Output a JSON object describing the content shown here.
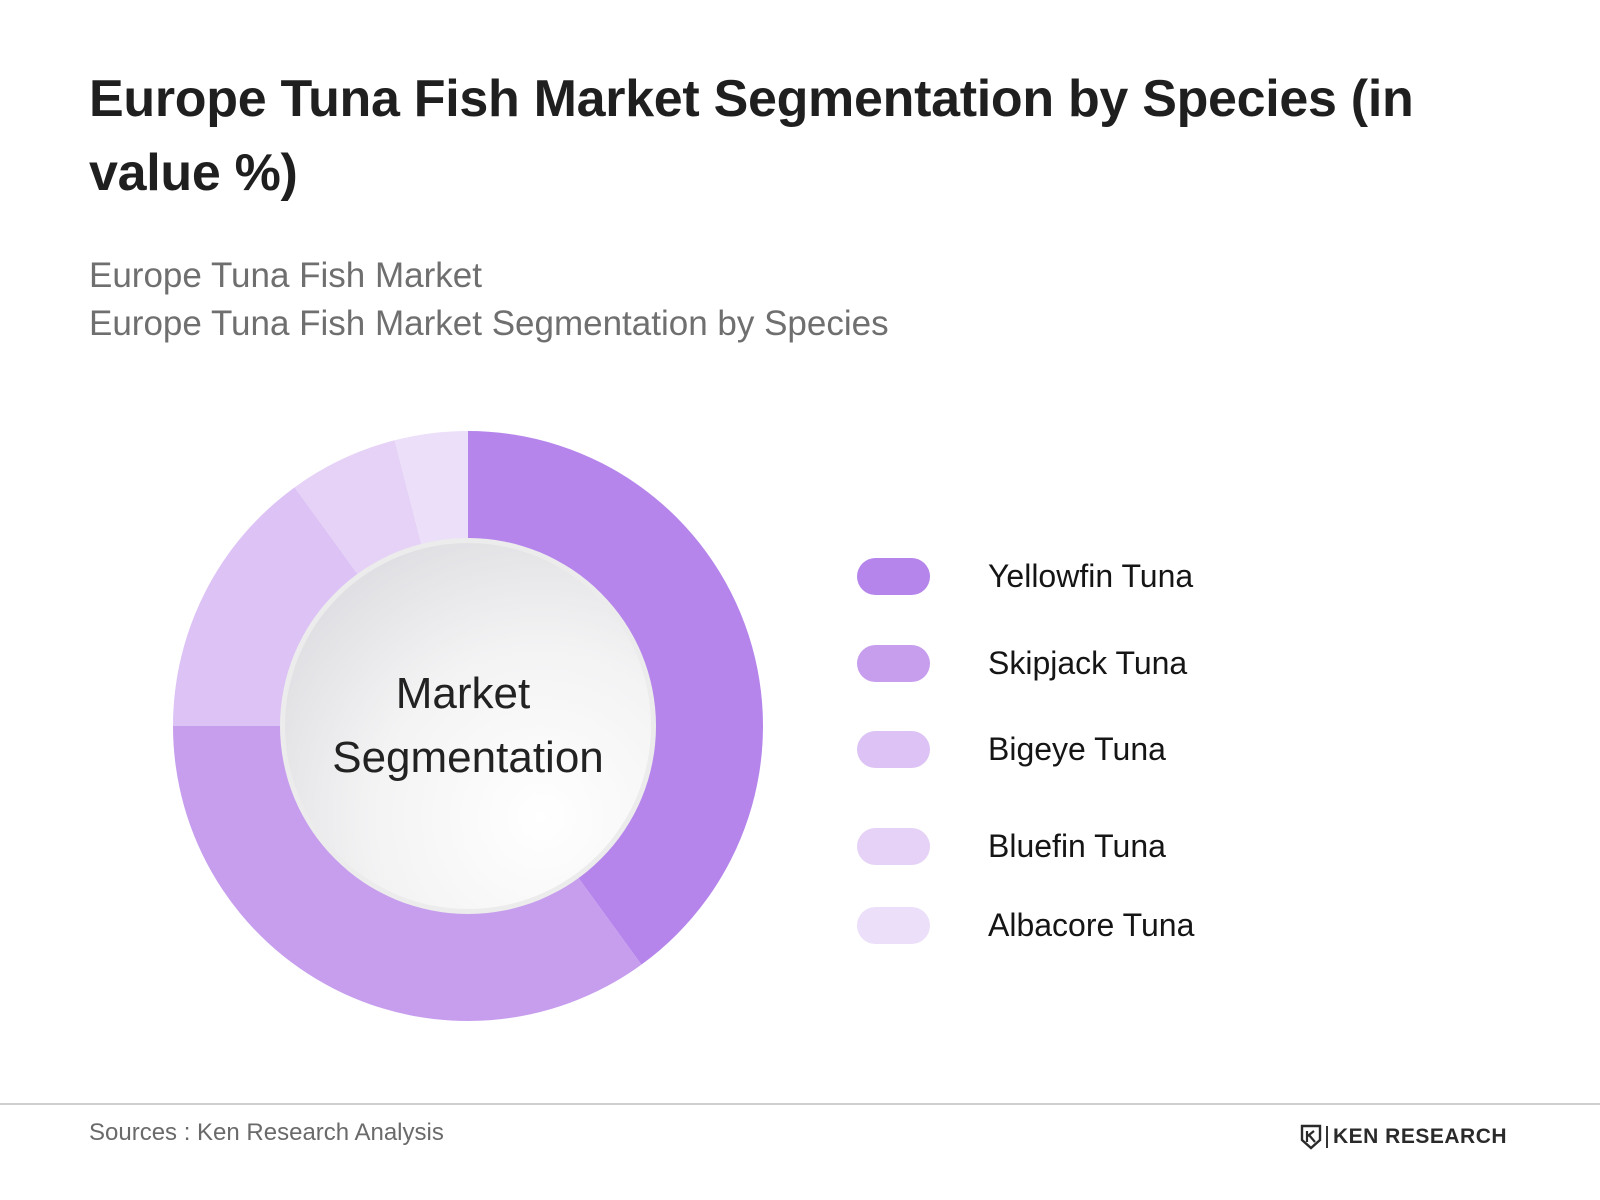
{
  "title": "Europe Tuna Fish Market Segmentation by Species (in value %)",
  "subtitle_line1": "Europe Tuna Fish Market",
  "subtitle_line2": "Europe Tuna Fish Market Segmentation by Species",
  "center_label_line1": "Market",
  "center_label_line2": "Segmentation",
  "chart_data": {
    "type": "pie",
    "variant": "donut",
    "categories": [
      "Yellowfin Tuna",
      "Skipjack Tuna",
      "Bigeye Tuna",
      "Bluefin Tuna",
      "Albacore Tuna"
    ],
    "values": [
      40,
      35,
      15,
      6,
      4
    ],
    "colors": [
      "#b585ec",
      "#c79eee",
      "#dcc2f5",
      "#e5d2f6",
      "#ecdffa"
    ],
    "start_angle": "top, clockwise",
    "legend_position": "right"
  },
  "legend": [
    {
      "label": "Yellowfin Tuna",
      "color": "#b585ec"
    },
    {
      "label": "Skipjack Tuna",
      "color": "#c79eee"
    },
    {
      "label": "Bigeye Tuna",
      "color": "#dcc2f5"
    },
    {
      "label": "Bluefin Tuna",
      "color": "#e5d2f6"
    },
    {
      "label": "Albacore Tuna",
      "color": "#ecdffa"
    }
  ],
  "footer": {
    "source": "Sources : Ken Research Analysis",
    "brand": "KEN RESEARCH",
    "brand_icon": "ken-research-logo-icon"
  }
}
